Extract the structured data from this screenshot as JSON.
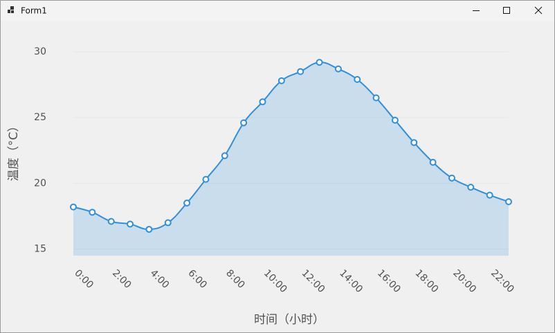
{
  "window": {
    "title": "Form1"
  },
  "chart_data": {
    "type": "line",
    "x_label": "时间（小时）",
    "y_label": "温度（°C）",
    "categories": [
      "0:00",
      null,
      "2:00",
      null,
      "4:00",
      null,
      "6:00",
      null,
      "8:00",
      null,
      "10:00",
      null,
      "12:00",
      null,
      "14:00",
      null,
      "16:00",
      null,
      "18:00",
      null,
      "20:00",
      null,
      "22:00",
      null
    ],
    "series": [
      {
        "color": "#2f8fdd",
        "area": true,
        "values": [
          18.2,
          17.8,
          17.1,
          16.9,
          16.5,
          17.0,
          18.5,
          20.3,
          22.1,
          24.6,
          26.2,
          27.8,
          28.5,
          29.2,
          28.7,
          27.9,
          26.5,
          24.8,
          23.1,
          21.6,
          20.4,
          19.7,
          19.1,
          18.6
        ]
      }
    ],
    "ylim": [
      14.5,
      31
    ],
    "yticks": [
      15,
      20,
      25,
      30
    ],
    "grid": true
  }
}
